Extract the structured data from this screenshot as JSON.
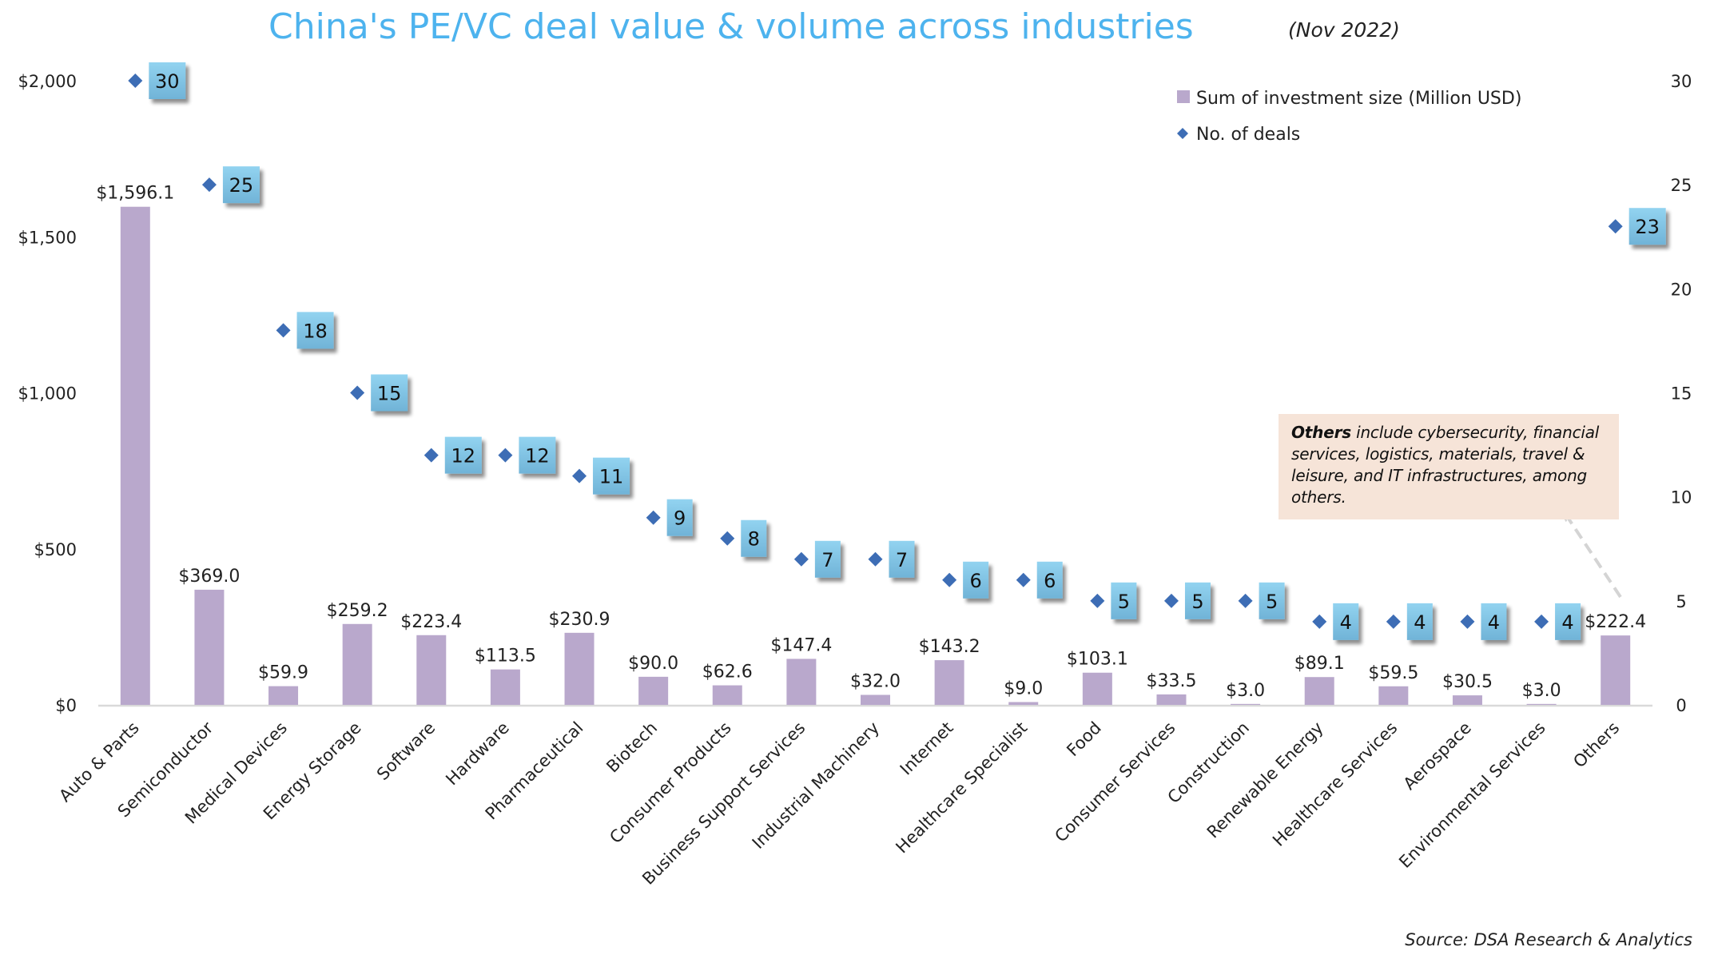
{
  "chart_data": {
    "type": "bar+scatter",
    "title": "China's PE/VC deal value & volume across industries",
    "subtitle": "(Nov 2022)",
    "categories": [
      "Auto & Parts",
      "Semiconductor",
      "Medical Devices",
      "Energy Storage",
      "Software",
      "Hardware",
      "Pharmaceutical",
      "Biotech",
      "Consumer Products",
      "Business Support Services",
      "Industrial Machinery",
      "Internet",
      "Healthcare Specialist",
      "Food",
      "Consumer Services",
      "Construction",
      "Renewable Energy",
      "Healthcare Services",
      "Aerospace",
      "Environmental Services",
      "Others"
    ],
    "series": [
      {
        "name": "Sum of investment size (Million USD)",
        "type": "bar",
        "axis": "left",
        "color": "#b9a8cc",
        "values": [
          1596.1,
          369.0,
          59.9,
          259.2,
          223.4,
          113.5,
          230.9,
          90.0,
          62.6,
          147.4,
          32.0,
          143.2,
          9.0,
          103.1,
          33.5,
          3.0,
          89.1,
          59.5,
          30.5,
          3.0,
          222.4
        ],
        "labels": [
          "$1,596.1",
          "$369.0",
          "$59.9",
          "$259.2",
          "$223.4",
          "$113.5",
          "$230.9",
          "$90.0",
          "$62.6",
          "$147.4",
          "$32.0",
          "$143.2",
          "$9.0",
          "$103.1",
          "$33.5",
          "$3.0",
          "$89.1",
          "$59.5",
          "$30.5",
          "$3.0",
          "$222.4"
        ]
      },
      {
        "name": "No. of deals",
        "type": "scatter",
        "axis": "right",
        "color": "#3d6db5",
        "label_box_color": "#80c3e4",
        "values": [
          30,
          25,
          18,
          15,
          12,
          12,
          11,
          9,
          8,
          7,
          7,
          6,
          6,
          5,
          5,
          5,
          4,
          4,
          4,
          4,
          23
        ]
      }
    ],
    "y_left": {
      "range": [
        0,
        2000
      ],
      "ticks": [
        0,
        500,
        1000,
        1500,
        2000
      ],
      "tick_labels": [
        "$0",
        "$500",
        "$1,000",
        "$1,500",
        "$2,000"
      ]
    },
    "y_right": {
      "range": [
        0,
        30
      ],
      "ticks": [
        0,
        5,
        10,
        15,
        20,
        25,
        30
      ],
      "tick_labels": [
        "0",
        "5",
        "10",
        "15",
        "20",
        "25",
        "30"
      ]
    },
    "xlabel": "",
    "ylabel": "",
    "grid": false,
    "legend": {
      "placement": "top-right",
      "entries": [
        "Sum of investment size (Million USD)",
        "No. of deals"
      ]
    },
    "annotation": {
      "bold": "Others",
      "text": " include cybersecurity, financial services, logistics, materials, travel & leisure, and IT infrastructures, among others.",
      "points_to": "Others"
    },
    "source": "Source: DSA Research & Analytics"
  }
}
